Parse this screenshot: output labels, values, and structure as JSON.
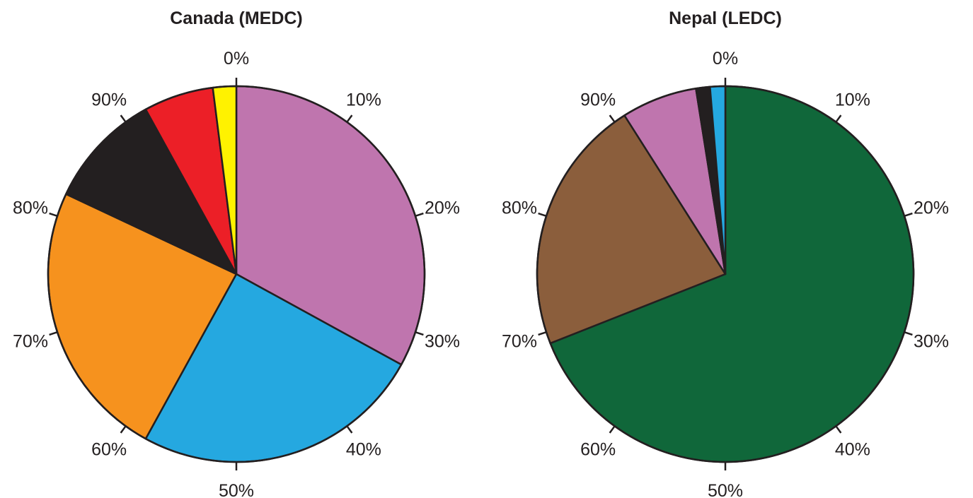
{
  "chart_data": [
    {
      "type": "pie",
      "title": "Canada (MEDC)",
      "tick_labels": [
        "0%",
        "10%",
        "20%",
        "30%",
        "40%",
        "50%",
        "60%",
        "70%",
        "80%",
        "90%"
      ],
      "slices": [
        {
          "value": 33,
          "color": "#bf75ae"
        },
        {
          "value": 25,
          "color": "#25a8e0"
        },
        {
          "value": 24,
          "color": "#f6921e"
        },
        {
          "value": 10,
          "color": "#231f20"
        },
        {
          "value": 6,
          "color": "#ec1f27"
        },
        {
          "value": 2,
          "color": "#fff200"
        }
      ]
    },
    {
      "type": "pie",
      "title": "Nepal (LEDC)",
      "tick_labels": [
        "0%",
        "10%",
        "20%",
        "30%",
        "40%",
        "50%",
        "60%",
        "70%",
        "80%",
        "90%"
      ],
      "slices": [
        {
          "value": 69,
          "color": "#10673a"
        },
        {
          "value": 22,
          "color": "#8b5e3c"
        },
        {
          "value": 6.5,
          "color": "#bf75ae"
        },
        {
          "value": 1.2,
          "color": "#231f20"
        },
        {
          "value": 1.3,
          "color": "#25a8e0"
        }
      ]
    }
  ]
}
